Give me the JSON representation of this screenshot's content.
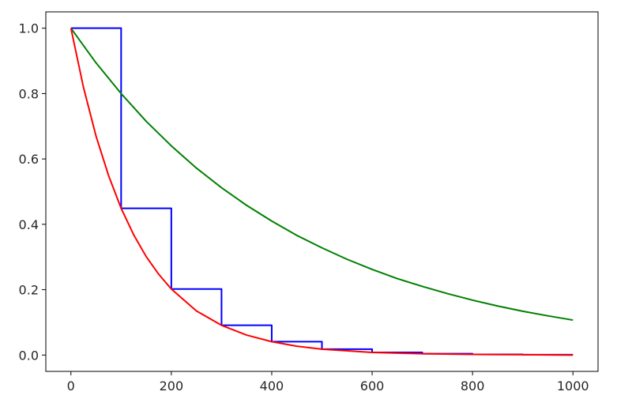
{
  "chart_data": {
    "type": "line",
    "title": "",
    "xlabel": "",
    "ylabel": "",
    "xlim": [
      -50,
      1050
    ],
    "ylim": [
      -0.05,
      1.05
    ],
    "grid": false,
    "x_ticks": [
      0,
      200,
      400,
      600,
      800,
      1000
    ],
    "x_tick_labels": [
      "0",
      "200",
      "400",
      "600",
      "800",
      "1000"
    ],
    "y_ticks": [
      0.0,
      0.2,
      0.4,
      0.6,
      0.8,
      1.0
    ],
    "y_tick_labels": [
      "0.0",
      "0.2",
      "0.4",
      "0.6",
      "0.8",
      "1.0"
    ],
    "series": [
      {
        "color": "#0000ff",
        "style": "step",
        "x": [
          0,
          100,
          100,
          200,
          200,
          300,
          300,
          400,
          400,
          500,
          500,
          600,
          600,
          700,
          700,
          800,
          800,
          900,
          900,
          1000
        ],
        "y": [
          1.0,
          1.0,
          0.449,
          0.449,
          0.202,
          0.202,
          0.091,
          0.091,
          0.041,
          0.041,
          0.018,
          0.018,
          0.008,
          0.008,
          0.004,
          0.004,
          0.002,
          0.002,
          0.001,
          0.001
        ]
      },
      {
        "color": "#008000",
        "style": "line",
        "x": [
          0,
          50,
          100,
          150,
          200,
          250,
          300,
          350,
          400,
          450,
          500,
          550,
          600,
          650,
          700,
          750,
          800,
          850,
          900,
          950,
          1000
        ],
        "y": [
          1.0,
          0.894,
          0.8,
          0.715,
          0.64,
          0.572,
          0.512,
          0.458,
          0.41,
          0.366,
          0.328,
          0.293,
          0.262,
          0.234,
          0.21,
          0.188,
          0.168,
          0.15,
          0.134,
          0.12,
          0.107
        ]
      },
      {
        "color": "#ff0000",
        "style": "line",
        "x": [
          0,
          25,
          50,
          75,
          100,
          125,
          150,
          175,
          200,
          250,
          300,
          350,
          400,
          450,
          500,
          600,
          700,
          800,
          900,
          1000
        ],
        "y": [
          1.0,
          0.819,
          0.67,
          0.549,
          0.449,
          0.368,
          0.301,
          0.247,
          0.202,
          0.135,
          0.091,
          0.061,
          0.041,
          0.027,
          0.018,
          0.008,
          0.004,
          0.002,
          0.001,
          0.0
        ]
      }
    ]
  }
}
